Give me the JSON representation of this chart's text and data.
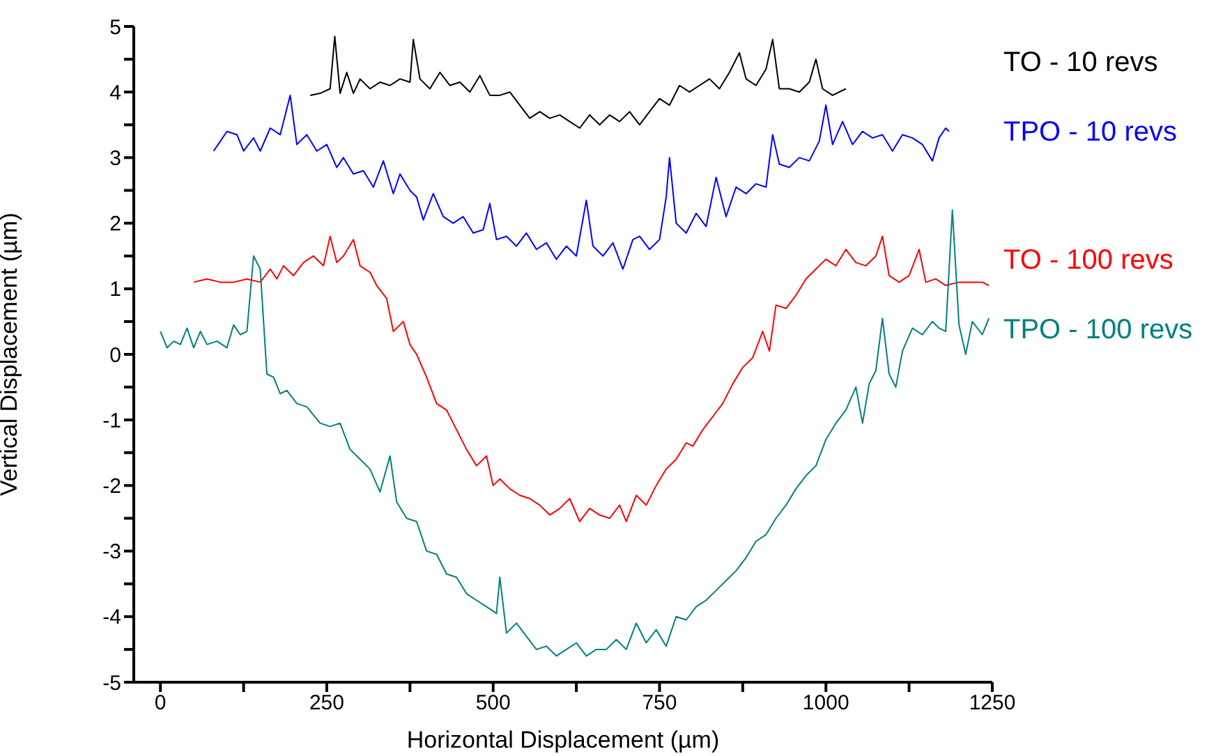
{
  "chart_data": {
    "type": "line",
    "xlabel": "Horizontal Displacement (µm)",
    "ylabel": "Vertical Displacement (µm)",
    "xlim": [
      -40,
      1250
    ],
    "ylim": [
      -5,
      5
    ],
    "xticks": [
      0,
      {
        "value": 125,
        "label": null
      },
      250,
      {
        "value": 375,
        "label": null
      },
      500,
      {
        "value": 625,
        "label": null
      },
      750,
      {
        "value": 875,
        "label": null
      },
      1000,
      {
        "value": 1125,
        "label": null
      },
      1250
    ],
    "yticks": [
      -5,
      {
        "value": -4.5,
        "label": null
      },
      -4,
      {
        "value": -3.5,
        "label": null
      },
      -3,
      {
        "value": -2.5,
        "label": null
      },
      -2,
      {
        "value": -1.5,
        "label": null
      },
      -1,
      {
        "value": -0.5,
        "label": null
      },
      0,
      {
        "value": 0.5,
        "label": null
      },
      1,
      {
        "value": 1.5,
        "label": null
      },
      2,
      {
        "value": 2.5,
        "label": null
      },
      3,
      {
        "value": 3.5,
        "label": null
      },
      4,
      {
        "value": 4.5,
        "label": null
      },
      5
    ],
    "grid": false,
    "legend": "right",
    "marker": "none",
    "line_style": "solid",
    "series": [
      {
        "name": "TO - 10 revs",
        "color": "#000000",
        "x": [
          225,
          240,
          255,
          262,
          270,
          280,
          290,
          300,
          315,
          330,
          345,
          360,
          375,
          380,
          390,
          405,
          420,
          435,
          450,
          465,
          480,
          495,
          510,
          525,
          540,
          555,
          570,
          585,
          600,
          615,
          630,
          645,
          660,
          675,
          690,
          705,
          720,
          735,
          750,
          765,
          780,
          795,
          810,
          825,
          840,
          855,
          870,
          880,
          895,
          910,
          920,
          930,
          945,
          960,
          975,
          985,
          995,
          1010,
          1030
        ],
        "values": [
          3.95,
          3.98,
          4.05,
          4.85,
          3.98,
          4.3,
          3.98,
          4.2,
          4.05,
          4.15,
          4.1,
          4.2,
          4.15,
          4.8,
          4.2,
          4.05,
          4.3,
          4.1,
          4.15,
          4.0,
          4.25,
          3.95,
          3.95,
          4.0,
          3.8,
          3.6,
          3.7,
          3.6,
          3.65,
          3.55,
          3.45,
          3.65,
          3.5,
          3.65,
          3.55,
          3.7,
          3.5,
          3.7,
          3.9,
          3.8,
          4.1,
          4.0,
          4.1,
          4.2,
          4.05,
          4.3,
          4.6,
          4.2,
          4.1,
          4.35,
          4.8,
          4.05,
          4.05,
          4.0,
          4.15,
          4.5,
          4.05,
          3.95,
          4.05
        ]
      },
      {
        "name": "TPO - 10 revs",
        "color": "#0000ff",
        "x": [
          80,
          90,
          100,
          115,
          125,
          140,
          150,
          165,
          180,
          195,
          205,
          220,
          235,
          250,
          265,
          275,
          290,
          305,
          320,
          335,
          350,
          360,
          375,
          385,
          395,
          410,
          425,
          440,
          455,
          470,
          485,
          495,
          505,
          520,
          535,
          550,
          565,
          580,
          595,
          610,
          625,
          640,
          650,
          665,
          680,
          695,
          710,
          720,
          735,
          750,
          760,
          765,
          775,
          790,
          805,
          820,
          835,
          850,
          865,
          880,
          895,
          910,
          920,
          930,
          945,
          960,
          975,
          990,
          1000,
          1010,
          1025,
          1040,
          1055,
          1070,
          1085,
          1100,
          1115,
          1130,
          1145,
          1160,
          1170,
          1180,
          1185
        ],
        "values": [
          3.1,
          3.25,
          3.4,
          3.35,
          3.1,
          3.3,
          3.1,
          3.45,
          3.35,
          3.95,
          3.2,
          3.35,
          3.1,
          3.2,
          2.85,
          3.0,
          2.75,
          2.8,
          2.55,
          2.95,
          2.45,
          2.75,
          2.5,
          2.4,
          2.05,
          2.45,
          2.1,
          2.0,
          2.1,
          1.85,
          1.9,
          2.3,
          1.75,
          1.8,
          1.65,
          1.85,
          1.6,
          1.7,
          1.45,
          1.65,
          1.5,
          2.35,
          1.65,
          1.5,
          1.7,
          1.3,
          1.75,
          1.8,
          1.6,
          1.75,
          2.4,
          3.0,
          2.0,
          1.85,
          2.15,
          1.95,
          2.7,
          2.1,
          2.55,
          2.45,
          2.6,
          2.55,
          3.35,
          2.9,
          2.85,
          3.0,
          2.95,
          3.25,
          3.8,
          3.2,
          3.55,
          3.2,
          3.4,
          3.3,
          3.35,
          3.1,
          3.35,
          3.3,
          3.2,
          2.95,
          3.3,
          3.45,
          3.4
        ]
      },
      {
        "name": "TO - 100 revs",
        "color": "#ff0000",
        "x": [
          50,
          70,
          90,
          110,
          130,
          150,
          165,
          175,
          185,
          200,
          215,
          230,
          245,
          255,
          265,
          275,
          290,
          300,
          315,
          325,
          340,
          350,
          365,
          375,
          385,
          400,
          415,
          430,
          445,
          460,
          475,
          490,
          500,
          510,
          525,
          540,
          555,
          570,
          585,
          600,
          615,
          630,
          645,
          660,
          675,
          690,
          700,
          715,
          730,
          745,
          760,
          775,
          790,
          800,
          815,
          830,
          845,
          860,
          875,
          890,
          905,
          915,
          925,
          940,
          955,
          970,
          985,
          1000,
          1015,
          1030,
          1045,
          1060,
          1075,
          1085,
          1095,
          1110,
          1125,
          1140,
          1150,
          1165,
          1180,
          1200,
          1215,
          1235,
          1245
        ],
        "values": [
          1.1,
          1.15,
          1.1,
          1.1,
          1.15,
          1.1,
          1.3,
          1.15,
          1.35,
          1.2,
          1.4,
          1.5,
          1.35,
          1.8,
          1.4,
          1.5,
          1.75,
          1.35,
          1.25,
          1.05,
          0.85,
          0.35,
          0.5,
          0.15,
          0.0,
          -0.35,
          -0.75,
          -0.85,
          -1.15,
          -1.45,
          -1.7,
          -1.55,
          -2.0,
          -1.9,
          -2.05,
          -2.15,
          -2.2,
          -2.3,
          -2.45,
          -2.35,
          -2.2,
          -2.55,
          -2.35,
          -2.45,
          -2.5,
          -2.3,
          -2.55,
          -2.15,
          -2.3,
          -2.0,
          -1.75,
          -1.6,
          -1.35,
          -1.4,
          -1.15,
          -0.95,
          -0.75,
          -0.45,
          -0.2,
          -0.05,
          0.35,
          0.05,
          0.75,
          0.7,
          0.9,
          1.15,
          1.3,
          1.45,
          1.35,
          1.6,
          1.4,
          1.35,
          1.5,
          1.8,
          1.2,
          1.1,
          1.2,
          1.6,
          1.1,
          1.15,
          1.05,
          1.1,
          1.1,
          1.1,
          1.05
        ]
      },
      {
        "name": "TPO - 100 revs",
        "color": "#008080",
        "x": [
          0,
          10,
          20,
          30,
          40,
          50,
          60,
          70,
          85,
          100,
          110,
          120,
          130,
          140,
          150,
          160,
          170,
          180,
          190,
          205,
          220,
          240,
          255,
          270,
          285,
          300,
          315,
          330,
          345,
          355,
          370,
          385,
          400,
          415,
          430,
          445,
          460,
          475,
          490,
          505,
          510,
          520,
          535,
          550,
          565,
          580,
          595,
          610,
          625,
          640,
          655,
          670,
          685,
          700,
          715,
          730,
          745,
          760,
          775,
          790,
          805,
          820,
          835,
          850,
          865,
          880,
          895,
          910,
          925,
          940,
          955,
          970,
          985,
          1000,
          1015,
          1030,
          1045,
          1055,
          1065,
          1075,
          1085,
          1095,
          1105,
          1115,
          1130,
          1145,
          1160,
          1170,
          1180,
          1190,
          1200,
          1210,
          1220,
          1235,
          1245
        ],
        "values": [
          0.35,
          0.1,
          0.2,
          0.15,
          0.4,
          0.1,
          0.35,
          0.15,
          0.2,
          0.1,
          0.45,
          0.3,
          0.35,
          1.5,
          1.3,
          -0.3,
          -0.35,
          -0.6,
          -0.55,
          -0.75,
          -0.8,
          -1.05,
          -1.1,
          -1.05,
          -1.45,
          -1.6,
          -1.75,
          -2.1,
          -1.55,
          -2.25,
          -2.5,
          -2.55,
          -3.0,
          -3.05,
          -3.35,
          -3.4,
          -3.65,
          -3.75,
          -3.85,
          -3.95,
          -3.4,
          -4.25,
          -4.1,
          -4.3,
          -4.5,
          -4.45,
          -4.6,
          -4.5,
          -4.4,
          -4.6,
          -4.5,
          -4.5,
          -4.35,
          -4.5,
          -4.1,
          -4.4,
          -4.2,
          -4.45,
          -4.0,
          -4.05,
          -3.85,
          -3.75,
          -3.6,
          -3.45,
          -3.3,
          -3.1,
          -2.85,
          -2.75,
          -2.5,
          -2.3,
          -2.05,
          -1.85,
          -1.7,
          -1.3,
          -1.05,
          -0.85,
          -0.5,
          -1.05,
          -0.45,
          -0.25,
          0.55,
          -0.3,
          -0.5,
          0.05,
          0.4,
          0.3,
          0.5,
          0.4,
          0.35,
          2.2,
          0.45,
          0.0,
          0.5,
          0.3,
          0.55
        ]
      }
    ]
  }
}
